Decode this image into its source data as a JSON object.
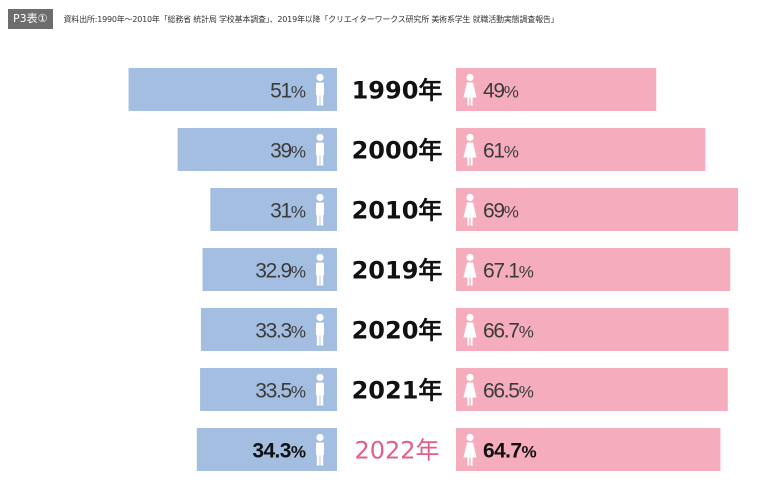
{
  "header": {
    "tag": "P3表①",
    "source": "資料出所:1990年～2010年「総務省 統計局 学校基本調査」、2019年以降「クリエイターワークス研究所 美術系学生 就職活動実態調査報告」"
  },
  "colors": {
    "male_bar": "#a3bee1",
    "female_bar": "#f5adbd",
    "highlight_year": "#e0608a"
  },
  "icons": {
    "male": "male-person-icon",
    "female": "female-person-icon"
  },
  "chart_data": {
    "type": "bar",
    "orientation": "horizontal-diverging",
    "categories": [
      "1990年",
      "2000年",
      "2010年",
      "2019年",
      "2020年",
      "2021年",
      "2022年"
    ],
    "series": [
      {
        "name": "male",
        "values": [
          51,
          39,
          31,
          32.9,
          33.3,
          33.5,
          34.3
        ],
        "labels": [
          "51",
          "39",
          "31",
          "32.9",
          "33.3",
          "33.5",
          "34.3"
        ]
      },
      {
        "name": "female",
        "values": [
          49,
          61,
          69,
          67.1,
          66.7,
          66.5,
          64.7
        ],
        "labels": [
          "49",
          "61",
          "69",
          "67.1",
          "66.7",
          "66.5",
          "64.7"
        ]
      }
    ],
    "unit": "%",
    "highlight": "2022年",
    "xlim": [
      0,
      70
    ]
  }
}
